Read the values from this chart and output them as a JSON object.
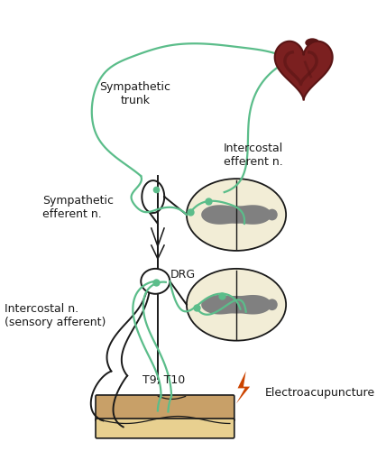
{
  "bg_color": "#ffffff",
  "green": "#5BBD8A",
  "black": "#1a1a1a",
  "heart_main": "#7B2020",
  "heart_dark": "#5a1515",
  "spinal_bg": "#F2EDD6",
  "spinal_gray": "#808080",
  "skin_tan": "#C8A068",
  "skin_light": "#E8D090",
  "lightning": "#CC4400",
  "figsize": [
    4.28,
    5.0
  ],
  "dpi": 100,
  "labels": {
    "sym_trunk": "Sympathetic\ntrunk",
    "intercostal_eff": "Intercostal\nefferent n.",
    "sym_eff": "Sympathetic\nefferent n.",
    "intercostal_sens": "Intercostal n.\n(sensory afferent)",
    "drg": "DRG",
    "t9t10": "T9, T10",
    "ea": "Electroacupuncture"
  }
}
